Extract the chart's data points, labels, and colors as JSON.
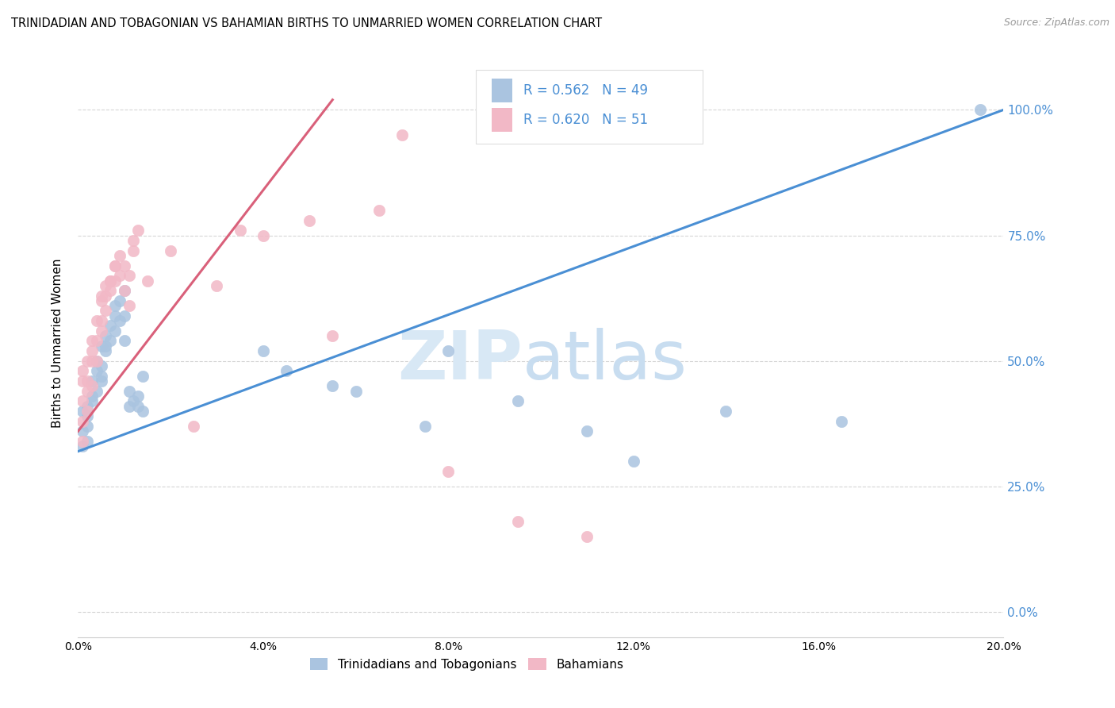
{
  "title": "TRINIDADIAN AND TOBAGONIAN VS BAHAMIAN BIRTHS TO UNMARRIED WOMEN CORRELATION CHART",
  "source": "Source: ZipAtlas.com",
  "ylabel": "Births to Unmarried Women",
  "legend_label1": "Trinidadians and Tobagonians",
  "legend_label2": "Bahamians",
  "R1": 0.562,
  "N1": 49,
  "R2": 0.62,
  "N2": 51,
  "color1": "#aac4e0",
  "color2": "#f2b8c6",
  "line_color1": "#4a8fd4",
  "line_color2": "#d9607a",
  "watermark_zip_color": "#d8e8f5",
  "watermark_atlas_color": "#c8ddf0",
  "grid_color": "#cccccc",
  "xmin": 0.0,
  "xmax": 0.2,
  "ymin": -0.05,
  "ymax": 1.12,
  "ytick_vals": [
    0.0,
    0.25,
    0.5,
    0.75,
    1.0
  ],
  "xtick_vals": [
    0.0,
    0.04,
    0.08,
    0.12,
    0.16,
    0.2
  ],
  "blue_line_x": [
    0.0,
    0.2
  ],
  "blue_line_y": [
    0.32,
    1.0
  ],
  "pink_line_x": [
    0.0,
    0.055
  ],
  "pink_line_y": [
    0.36,
    1.02
  ],
  "blue_scatter_x": [
    0.001,
    0.001,
    0.001,
    0.002,
    0.002,
    0.002,
    0.002,
    0.003,
    0.003,
    0.003,
    0.004,
    0.004,
    0.004,
    0.005,
    0.005,
    0.005,
    0.005,
    0.006,
    0.006,
    0.006,
    0.007,
    0.007,
    0.008,
    0.008,
    0.008,
    0.009,
    0.009,
    0.01,
    0.01,
    0.01,
    0.011,
    0.011,
    0.012,
    0.013,
    0.013,
    0.014,
    0.014,
    0.04,
    0.045,
    0.055,
    0.06,
    0.075,
    0.08,
    0.095,
    0.11,
    0.12,
    0.14,
    0.165,
    0.195
  ],
  "blue_scatter_y": [
    0.36,
    0.33,
    0.4,
    0.39,
    0.37,
    0.34,
    0.41,
    0.42,
    0.46,
    0.43,
    0.44,
    0.48,
    0.5,
    0.53,
    0.46,
    0.47,
    0.49,
    0.52,
    0.53,
    0.55,
    0.54,
    0.57,
    0.59,
    0.56,
    0.61,
    0.62,
    0.58,
    0.64,
    0.59,
    0.54,
    0.44,
    0.41,
    0.42,
    0.43,
    0.41,
    0.4,
    0.47,
    0.52,
    0.48,
    0.45,
    0.44,
    0.37,
    0.52,
    0.42,
    0.36,
    0.3,
    0.4,
    0.38,
    1.0
  ],
  "pink_scatter_x": [
    0.001,
    0.001,
    0.001,
    0.001,
    0.001,
    0.002,
    0.002,
    0.002,
    0.002,
    0.003,
    0.003,
    0.003,
    0.003,
    0.004,
    0.004,
    0.004,
    0.005,
    0.005,
    0.005,
    0.005,
    0.006,
    0.006,
    0.006,
    0.007,
    0.007,
    0.007,
    0.008,
    0.008,
    0.008,
    0.009,
    0.009,
    0.01,
    0.01,
    0.011,
    0.011,
    0.012,
    0.012,
    0.013,
    0.015,
    0.02,
    0.025,
    0.03,
    0.035,
    0.04,
    0.05,
    0.055,
    0.065,
    0.07,
    0.08,
    0.095,
    0.11
  ],
  "pink_scatter_y": [
    0.34,
    0.38,
    0.42,
    0.46,
    0.48,
    0.4,
    0.44,
    0.46,
    0.5,
    0.45,
    0.5,
    0.52,
    0.54,
    0.5,
    0.54,
    0.58,
    0.56,
    0.58,
    0.62,
    0.63,
    0.6,
    0.63,
    0.65,
    0.66,
    0.64,
    0.66,
    0.69,
    0.66,
    0.69,
    0.71,
    0.67,
    0.69,
    0.64,
    0.67,
    0.61,
    0.72,
    0.74,
    0.76,
    0.66,
    0.72,
    0.37,
    0.65,
    0.76,
    0.75,
    0.78,
    0.55,
    0.8,
    0.95,
    0.28,
    0.18,
    0.15
  ]
}
